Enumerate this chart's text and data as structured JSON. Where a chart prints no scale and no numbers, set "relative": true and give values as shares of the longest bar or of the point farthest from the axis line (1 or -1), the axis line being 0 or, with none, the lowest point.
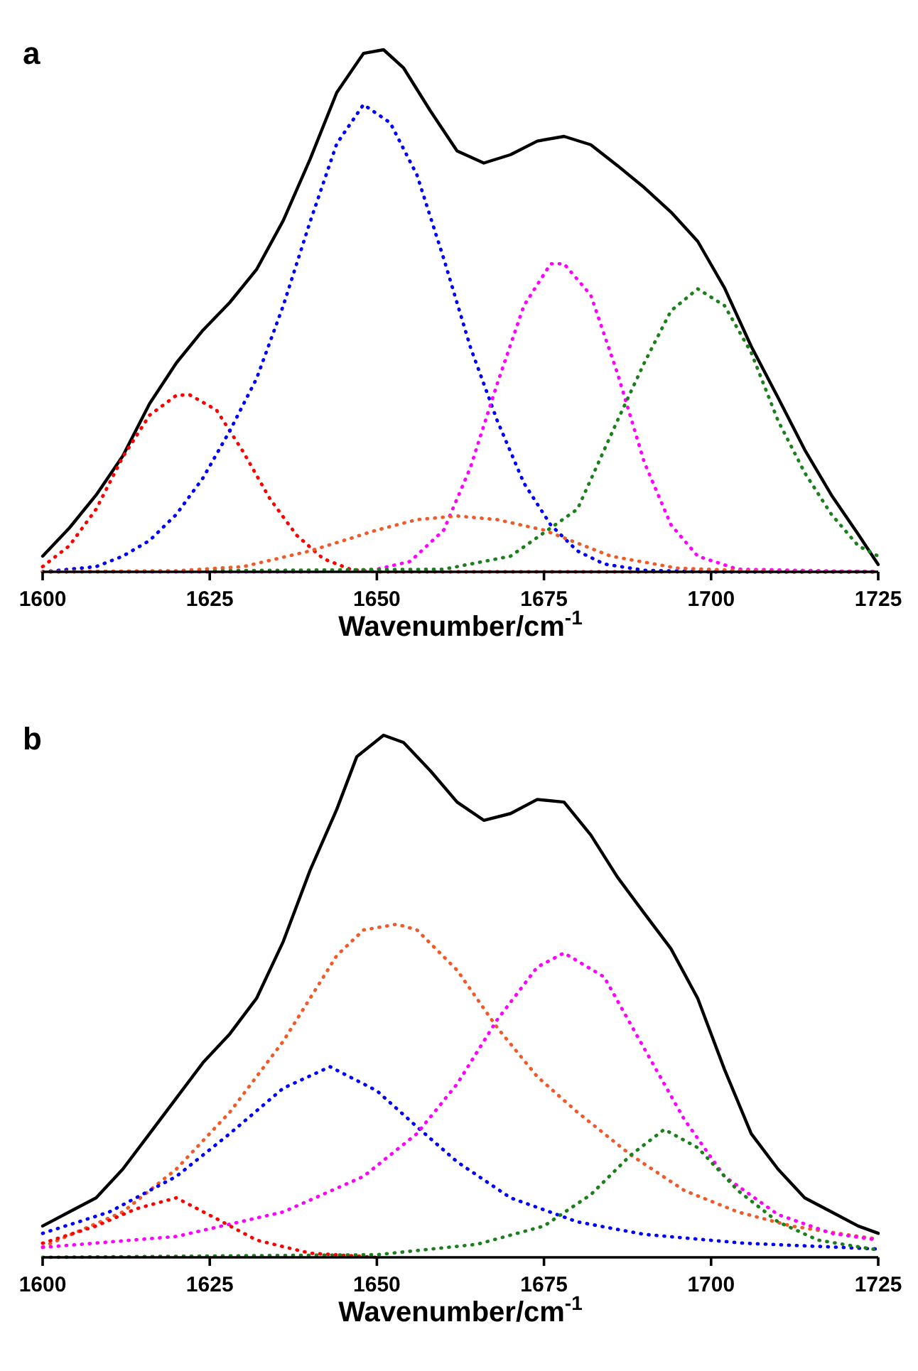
{
  "chart_data": [
    {
      "type": "line",
      "title": "a",
      "xlabel": "Wavenumber/cm$^{-1}$",
      "relative": true,
      "xlim": [
        1600,
        1725
      ],
      "xticks": [
        1600,
        1625,
        1650,
        1675,
        1700,
        1725
      ],
      "series": [
        {
          "color": "#000000",
          "line_style": "solid",
          "x": [
            1600,
            1604,
            1608,
            1612,
            1616,
            1620,
            1624,
            1628,
            1632,
            1636,
            1640,
            1644,
            1648,
            1651,
            1654,
            1658,
            1662,
            1666,
            1670,
            1674,
            1678,
            1682,
            1686,
            1690,
            1694,
            1698,
            1702,
            1706,
            1710,
            1714,
            1718,
            1722,
            1725
          ],
          "values": [
            0.03,
            0.084,
            0.147,
            0.222,
            0.322,
            0.4,
            0.463,
            0.516,
            0.579,
            0.673,
            0.79,
            0.918,
            0.993,
            1.0,
            0.965,
            0.883,
            0.806,
            0.783,
            0.799,
            0.825,
            0.834,
            0.818,
            0.778,
            0.736,
            0.689,
            0.633,
            0.544,
            0.432,
            0.334,
            0.234,
            0.147,
            0.072,
            0.014
          ]
        },
        {
          "color": "#ff0000",
          "line_style": "dotted",
          "x": [
            1600,
            1604,
            1608,
            1612,
            1616,
            1620,
            1622,
            1626,
            1630,
            1634,
            1638,
            1642,
            1646,
            1650,
            1725
          ],
          "values": [
            0.01,
            0.05,
            0.12,
            0.22,
            0.3,
            0.338,
            0.339,
            0.31,
            0.23,
            0.14,
            0.07,
            0.025,
            0.005,
            0,
            0
          ]
        },
        {
          "color": "#0000ff",
          "line_style": "dotted",
          "x": [
            1600,
            1608,
            1612,
            1616,
            1620,
            1624,
            1628,
            1632,
            1636,
            1640,
            1644,
            1648,
            1652,
            1656,
            1660,
            1664,
            1668,
            1672,
            1676,
            1680,
            1684,
            1690,
            1700,
            1725
          ],
          "values": [
            0,
            0.01,
            0.03,
            0.06,
            0.11,
            0.18,
            0.27,
            0.37,
            0.51,
            0.67,
            0.82,
            0.895,
            0.86,
            0.76,
            0.6,
            0.43,
            0.29,
            0.17,
            0.09,
            0.04,
            0.015,
            0.003,
            0,
            0
          ]
        },
        {
          "color": "#ff00ff",
          "line_style": "dotted",
          "x": [
            1600,
            1640,
            1650,
            1655,
            1660,
            1664,
            1668,
            1672,
            1676,
            1678,
            1682,
            1686,
            1690,
            1694,
            1698,
            1704,
            1725
          ],
          "values": [
            0,
            0,
            0.005,
            0.02,
            0.08,
            0.2,
            0.36,
            0.51,
            0.59,
            0.59,
            0.53,
            0.38,
            0.21,
            0.09,
            0.03,
            0.005,
            0
          ]
        },
        {
          "color": "#1a801a",
          "line_style": "dotted",
          "x": [
            1600,
            1660,
            1670,
            1680,
            1686,
            1690,
            1694,
            1698,
            1702,
            1706,
            1710,
            1714,
            1718,
            1722,
            1725
          ],
          "values": [
            0,
            0.005,
            0.03,
            0.12,
            0.29,
            0.4,
            0.5,
            0.542,
            0.51,
            0.42,
            0.29,
            0.19,
            0.11,
            0.05,
            0.03
          ]
        },
        {
          "color": "#f05a28",
          "line_style": "dotted",
          "x": [
            1600,
            1620,
            1630,
            1640,
            1650,
            1656,
            1662,
            1668,
            1675,
            1685,
            1695,
            1710,
            1725
          ],
          "values": [
            0,
            0.002,
            0.01,
            0.04,
            0.08,
            0.1,
            0.107,
            0.1,
            0.08,
            0.03,
            0.007,
            0,
            0
          ]
        }
      ]
    },
    {
      "type": "line",
      "title": "b",
      "xlabel": "Wavenumber/cm$^{-1}$",
      "relative": true,
      "xlim": [
        1600,
        1725
      ],
      "xticks": [
        1600,
        1625,
        1650,
        1675,
        1700,
        1725
      ],
      "series": [
        {
          "color": "#000000",
          "line_style": "solid",
          "x": [
            1600,
            1604,
            1608,
            1612,
            1616,
            1620,
            1624,
            1628,
            1632,
            1636,
            1640,
            1644,
            1647,
            1651,
            1654,
            1658,
            1662,
            1666,
            1670,
            1674,
            1678,
            1682,
            1686,
            1690,
            1694,
            1698,
            1702,
            1706,
            1710,
            1714,
            1718,
            1722,
            1725
          ],
          "values": [
            0.06,
            0.087,
            0.114,
            0.169,
            0.237,
            0.305,
            0.373,
            0.428,
            0.496,
            0.605,
            0.741,
            0.858,
            0.959,
            1.0,
            0.986,
            0.932,
            0.872,
            0.837,
            0.85,
            0.877,
            0.872,
            0.809,
            0.728,
            0.659,
            0.591,
            0.496,
            0.36,
            0.237,
            0.169,
            0.114,
            0.087,
            0.06,
            0.046
          ]
        },
        {
          "color": "#f05a28",
          "line_style": "dotted",
          "x": [
            1600,
            1612,
            1620,
            1628,
            1636,
            1644,
            1648,
            1653,
            1656,
            1662,
            1668,
            1674,
            1680,
            1688,
            1696,
            1704,
            1712,
            1720,
            1725
          ],
          "values": [
            0.02,
            0.087,
            0.169,
            0.278,
            0.414,
            0.578,
            0.627,
            0.638,
            0.627,
            0.55,
            0.44,
            0.346,
            0.278,
            0.196,
            0.128,
            0.087,
            0.06,
            0.044,
            0.035
          ]
        },
        {
          "color": "#0000ff",
          "line_style": "dotted",
          "x": [
            1600,
            1610,
            1620,
            1628,
            1636,
            1643,
            1650,
            1656,
            1662,
            1670,
            1680,
            1690,
            1705,
            1725
          ],
          "values": [
            0.046,
            0.087,
            0.155,
            0.237,
            0.324,
            0.365,
            0.319,
            0.25,
            0.183,
            0.114,
            0.068,
            0.044,
            0.027,
            0.016
          ]
        },
        {
          "color": "#ff00ff",
          "line_style": "dotted",
          "x": [
            1600,
            1620,
            1636,
            1648,
            1656,
            1662,
            1668,
            1674,
            1678,
            1684,
            1690,
            1696,
            1702,
            1710,
            1718,
            1725
          ],
          "values": [
            0.019,
            0.04,
            0.087,
            0.155,
            0.237,
            0.332,
            0.455,
            0.556,
            0.583,
            0.537,
            0.4,
            0.264,
            0.155,
            0.082,
            0.046,
            0.033
          ]
        },
        {
          "color": "#1a801a",
          "line_style": "dotted",
          "x": [
            1600,
            1650,
            1665,
            1675,
            1682,
            1688,
            1693,
            1698,
            1704,
            1710,
            1716,
            1725
          ],
          "values": [
            0,
            0.005,
            0.025,
            0.06,
            0.12,
            0.196,
            0.245,
            0.21,
            0.128,
            0.068,
            0.033,
            0.014
          ]
        },
        {
          "color": "#ff0000",
          "line_style": "dotted",
          "x": [
            1600,
            1608,
            1614,
            1620,
            1626,
            1632,
            1640,
            1650
          ],
          "values": [
            0.027,
            0.06,
            0.093,
            0.114,
            0.074,
            0.033,
            0.008,
            0
          ]
        }
      ]
    }
  ]
}
